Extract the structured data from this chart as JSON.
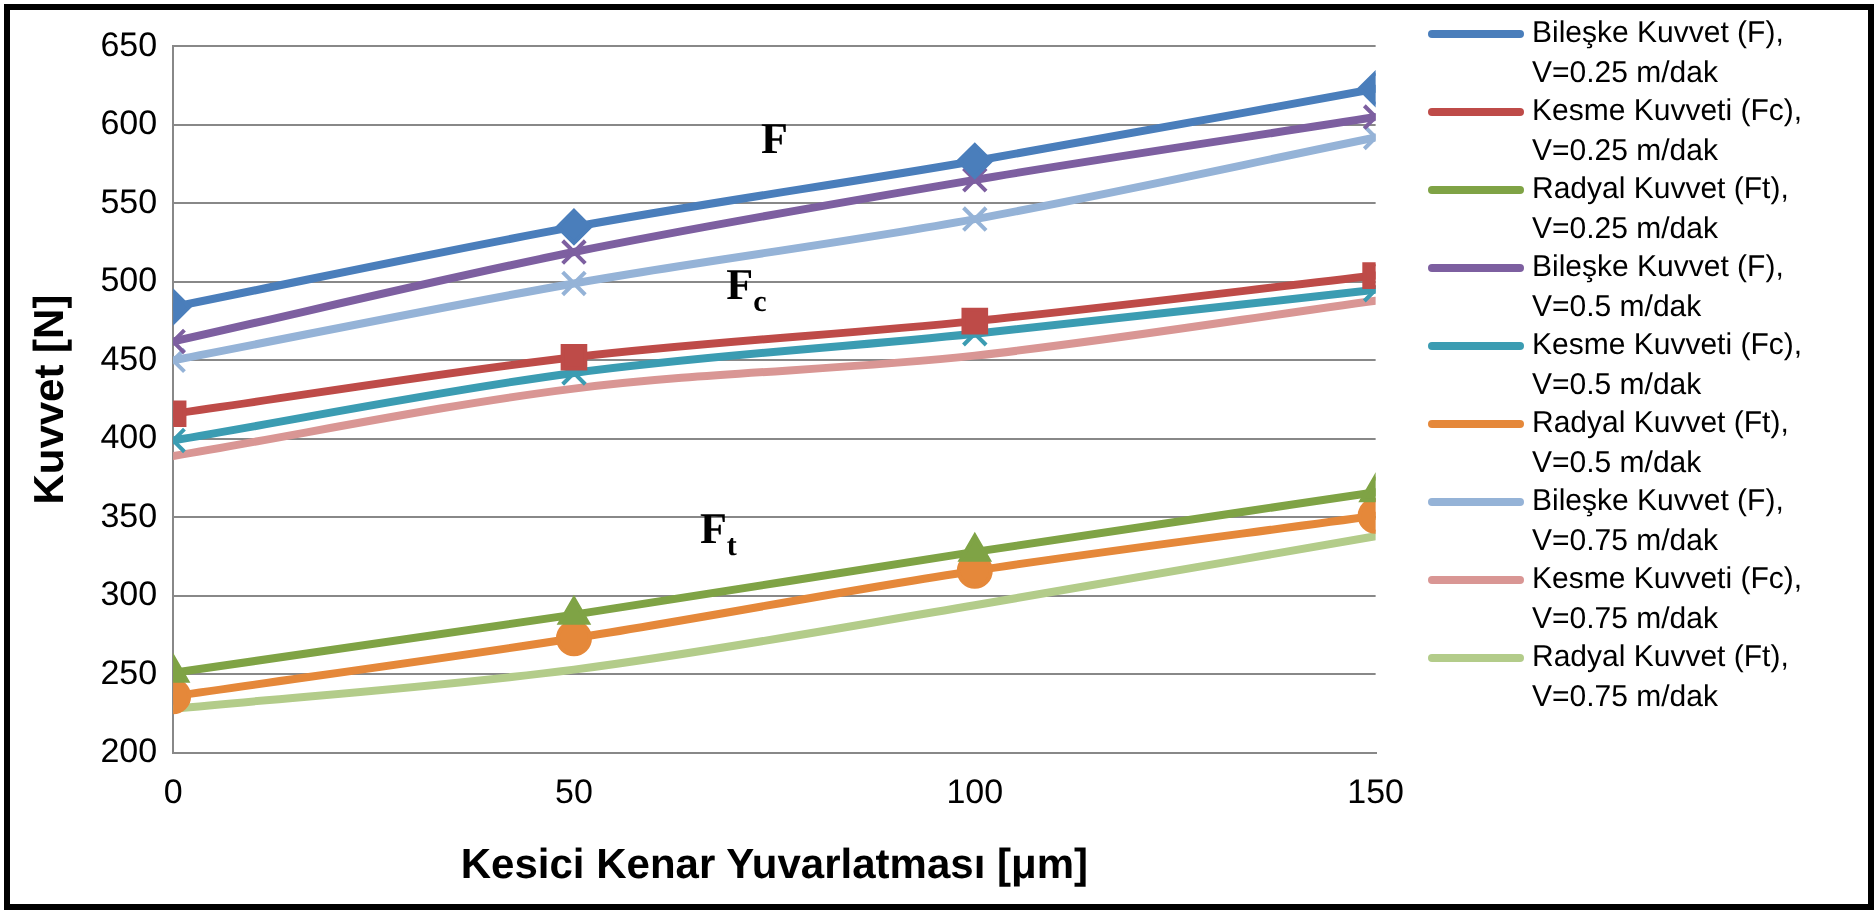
{
  "chart_data": {
    "type": "line",
    "xlabel": "Kesici Kenar Yuvarlatması [μm]",
    "ylabel": "Kuvvet [N]",
    "x": [
      0,
      50,
      100,
      150
    ],
    "xlim": [
      0,
      150
    ],
    "xticks": [
      0,
      50,
      100,
      150
    ],
    "ylim": [
      200,
      650
    ],
    "yticks": [
      200,
      250,
      300,
      350,
      400,
      450,
      500,
      550,
      600,
      650
    ],
    "grid": "y",
    "legend": "right",
    "line_style": "solid",
    "series": [
      {
        "name": "Bileşke Kuvvet (F), V=0.25 m/dak",
        "color": "#4a7ebb",
        "marker": "diamond",
        "values": [
          484,
          535,
          577,
          623
        ]
      },
      {
        "name": "Kesme Kuvveti (Fc), V=0.25 m/dak",
        "color": "#be4b48",
        "marker": "square",
        "values": [
          416,
          452,
          475,
          504
        ]
      },
      {
        "name": "Radyal Kuvvet (Ft), V=0.25 m/dak",
        "color": "#7fa345",
        "marker": "triangle",
        "values": [
          251,
          288,
          328,
          366
        ]
      },
      {
        "name": "Bileşke Kuvvet (F), V=0.5 m/dak",
        "color": "#7d5fa0",
        "marker": "cross",
        "values": [
          462,
          519,
          565,
          605
        ]
      },
      {
        "name": "Kesme Kuvveti (Fc), V=0.5 m/dak",
        "color": "#3b9cb2",
        "marker": "cross",
        "values": [
          399,
          442,
          467,
          495
        ]
      },
      {
        "name": "Radyal Kuvvet (Ft), V=0.5 m/dak",
        "color": "#e5883a",
        "marker": "circle",
        "values": [
          236,
          273,
          316,
          351
        ]
      },
      {
        "name": "Bileşke Kuvvet (F), V=0.75 m/dak",
        "color": "#95b3d7",
        "marker": "cross",
        "values": [
          450,
          499,
          540,
          592
        ]
      },
      {
        "name": "Kesme Kuvveti (Fc), V=0.75 m/dak",
        "color": "#d99694",
        "marker": "none",
        "values": [
          389,
          432,
          453,
          488
        ]
      },
      {
        "name": "Radyal Kuvvet (Ft), V=0.75 m/dak",
        "color": "#b3cc8a",
        "marker": "none",
        "values": [
          228,
          253,
          294,
          338
        ]
      }
    ],
    "annotations": [
      "F",
      "F$_{c}$",
      "F$_{t}$"
    ]
  }
}
